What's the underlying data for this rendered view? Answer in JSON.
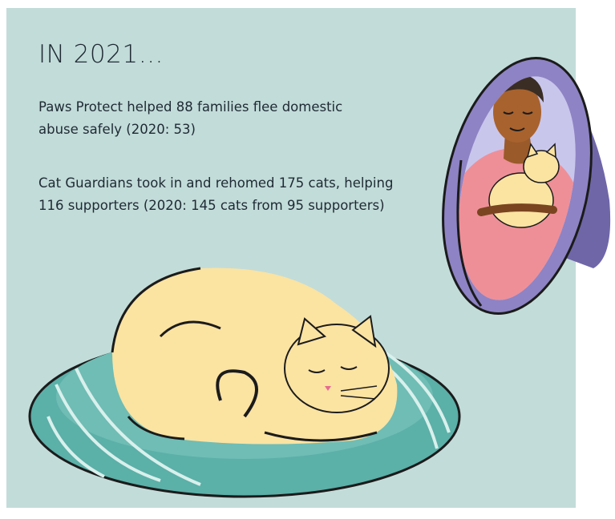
{
  "heading": "IN 2021…",
  "stats": [
    "Paws Protect helped 88 families flee domestic abuse safely (2020: 53)",
    "Cat Guardians took in and rehomed 175 cats, helping 116 supporters (2020: 145 cats from 95 supporters)"
  ],
  "colors": {
    "panel": "#c2dcd9",
    "cushion": "#5bb0a8",
    "cat": "#fbe3a2",
    "mirror_frame": "#8e83c4",
    "person_shirt": "#ee8f98"
  },
  "illustrations": [
    "sleeping-cat-on-cushion",
    "mirror-with-person-holding-cat"
  ]
}
